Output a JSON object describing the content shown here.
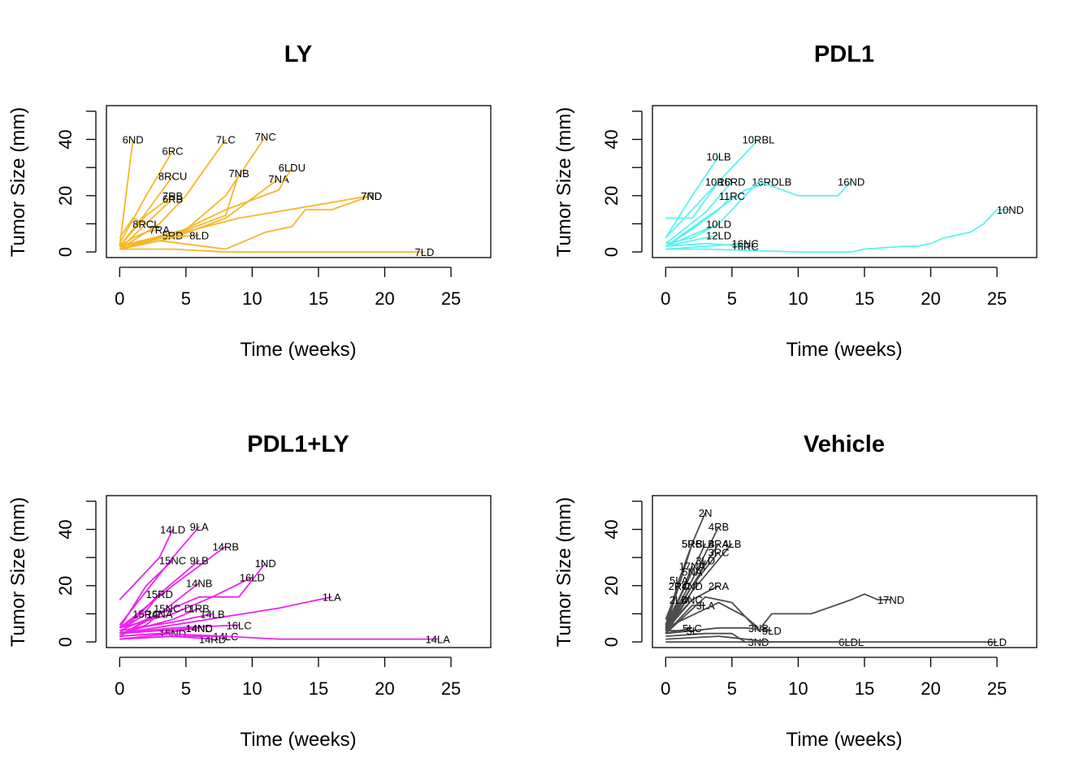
{
  "chart_data": [
    {
      "type": "line",
      "title": "LY",
      "xlabel": "Time (weeks)",
      "ylabel": "Tumor Size (mm)",
      "xlim": [
        0,
        27
      ],
      "ylim": [
        0,
        52
      ],
      "xticks": [
        "0",
        "5",
        "10",
        "15",
        "20",
        "25"
      ],
      "yticks": [
        "0",
        "20",
        "40"
      ],
      "color": "#F5B727",
      "series": [
        {
          "name": "6ND",
          "x": [
            0,
            1
          ],
          "y": [
            2,
            40
          ]
        },
        {
          "name": "6RC",
          "x": [
            0,
            2,
            4
          ],
          "y": [
            3,
            20,
            36
          ]
        },
        {
          "name": "7LC",
          "x": [
            0,
            3,
            5,
            8
          ],
          "y": [
            1,
            10,
            20,
            40
          ]
        },
        {
          "name": "7NC",
          "x": [
            0,
            5,
            8,
            11
          ],
          "y": [
            2,
            8,
            20,
            41
          ]
        },
        {
          "name": "8RCU",
          "x": [
            0,
            2,
            4
          ],
          "y": [
            2,
            14,
            27
          ]
        },
        {
          "name": "7NB",
          "x": [
            0,
            4,
            8,
            9
          ],
          "y": [
            2,
            6,
            13,
            28
          ]
        },
        {
          "name": "7NA",
          "x": [
            0,
            4,
            8,
            12
          ],
          "y": [
            1,
            5,
            12,
            26
          ]
        },
        {
          "name": "6LDU",
          "x": [
            0,
            4,
            8,
            12,
            13
          ],
          "y": [
            1,
            6,
            15,
            22,
            30
          ]
        },
        {
          "name": "7RB",
          "x": [
            0,
            2,
            4
          ],
          "y": [
            2,
            13,
            20
          ]
        },
        {
          "name": "6RB",
          "x": [
            0,
            2,
            4
          ],
          "y": [
            1,
            10,
            19
          ]
        },
        {
          "name": "7RD",
          "x": [
            0,
            4,
            9,
            14,
            19
          ],
          "y": [
            2,
            6,
            12,
            16,
            20
          ]
        },
        {
          "name": "8RCL",
          "x": [
            0,
            1,
            2
          ],
          "y": [
            5,
            12,
            10
          ]
        },
        {
          "name": "7RA",
          "x": [
            0,
            1,
            2,
            3
          ],
          "y": [
            2,
            5,
            7,
            8
          ]
        },
        {
          "name": "5RD",
          "x": [
            0,
            2,
            4
          ],
          "y": [
            1,
            4,
            6
          ]
        },
        {
          "name": "8LD",
          "x": [
            0,
            3,
            6
          ],
          "y": [
            2,
            5,
            6
          ]
        },
        {
          "name": "7ND",
          "x": [
            0,
            3,
            8,
            10,
            11,
            12,
            13,
            14,
            16,
            19
          ],
          "y": [
            1,
            4,
            1,
            5,
            7,
            8,
            9,
            15,
            15,
            20
          ]
        },
        {
          "name": "7LD",
          "x": [
            0,
            4,
            8,
            12,
            16,
            20,
            23
          ],
          "y": [
            1,
            1,
            0,
            0,
            0,
            0,
            0
          ]
        }
      ]
    },
    {
      "type": "line",
      "title": "PDL1",
      "xlabel": "Time (weeks)",
      "ylabel": "Tumor Size (mm)",
      "xlim": [
        0,
        27
      ],
      "ylim": [
        0,
        52
      ],
      "xticks": [
        "0",
        "5",
        "10",
        "15",
        "20",
        "25"
      ],
      "yticks": [
        "0",
        "20",
        "40"
      ],
      "color": "#5CF2F2",
      "series": [
        {
          "name": "10RBL",
          "x": [
            0,
            3,
            5,
            7
          ],
          "y": [
            5,
            20,
            30,
            40
          ]
        },
        {
          "name": "10LB",
          "x": [
            0,
            2,
            4
          ],
          "y": [
            5,
            20,
            34
          ]
        },
        {
          "name": "10RD",
          "x": [
            0,
            2,
            4
          ],
          "y": [
            12,
            12,
            25
          ]
        },
        {
          "name": "16RD",
          "x": [
            0,
            3,
            5
          ],
          "y": [
            3,
            14,
            25
          ]
        },
        {
          "name": "16RDLB",
          "x": [
            0,
            3,
            6,
            8
          ],
          "y": [
            2,
            12,
            22,
            25
          ]
        },
        {
          "name": "16ND",
          "x": [
            0,
            4,
            7,
            10,
            13,
            14
          ],
          "y": [
            2,
            10,
            25,
            20,
            20,
            25
          ]
        },
        {
          "name": "11RC",
          "x": [
            0,
            2,
            4,
            5
          ],
          "y": [
            2,
            8,
            15,
            20
          ]
        },
        {
          "name": "10LD",
          "x": [
            0,
            2,
            4
          ],
          "y": [
            3,
            5,
            10
          ]
        },
        {
          "name": "12LD",
          "x": [
            0,
            2,
            4
          ],
          "y": [
            2,
            4,
            6
          ]
        },
        {
          "name": "16NC",
          "x": [
            0,
            3,
            6
          ],
          "y": [
            1,
            2,
            3
          ]
        },
        {
          "name": "16RC",
          "x": [
            0,
            3,
            6
          ],
          "y": [
            2,
            3,
            2
          ]
        },
        {
          "name": "10ND",
          "x": [
            0,
            3,
            10,
            14,
            15,
            18,
            19,
            20,
            21,
            23,
            24,
            25,
            26
          ],
          "y": [
            1,
            1,
            0,
            0,
            1,
            2,
            2,
            3,
            5,
            7,
            10,
            15,
            15
          ]
        }
      ]
    },
    {
      "type": "line",
      "title": "PDL1+LY",
      "xlabel": "Time (weeks)",
      "ylabel": "Tumor Size (mm)",
      "xlim": [
        0,
        27
      ],
      "ylim": [
        0,
        52
      ],
      "xticks": [
        "0",
        "5",
        "10",
        "15",
        "20",
        "25"
      ],
      "yticks": [
        "0",
        "20",
        "40"
      ],
      "color": "#EE22EE",
      "series": [
        {
          "name": "14LD",
          "x": [
            0,
            3,
            4
          ],
          "y": [
            15,
            30,
            40
          ]
        },
        {
          "name": "9LA",
          "x": [
            0,
            4,
            6
          ],
          "y": [
            6,
            30,
            41
          ]
        },
        {
          "name": "14RB",
          "x": [
            0,
            4,
            8
          ],
          "y": [
            5,
            20,
            34
          ]
        },
        {
          "name": "15NC",
          "x": [
            0,
            2,
            4
          ],
          "y": [
            5,
            20,
            29
          ]
        },
        {
          "name": "9LB",
          "x": [
            0,
            3,
            6
          ],
          "y": [
            3,
            17,
            29
          ]
        },
        {
          "name": "1ND",
          "x": [
            0,
            3,
            6,
            9,
            11
          ],
          "y": [
            4,
            10,
            16,
            16,
            28
          ]
        },
        {
          "name": "16LD",
          "x": [
            0,
            4,
            7,
            10
          ],
          "y": [
            5,
            10,
            16,
            23
          ]
        },
        {
          "name": "14NB",
          "x": [
            0,
            3,
            6
          ],
          "y": [
            2,
            10,
            21
          ]
        },
        {
          "name": "15RD",
          "x": [
            0,
            2,
            3
          ],
          "y": [
            5,
            11,
            17
          ]
        },
        {
          "name": "1LA",
          "x": [
            0,
            4,
            8,
            12,
            16
          ],
          "y": [
            3,
            6,
            9,
            12,
            16
          ]
        },
        {
          "name": "15NC-D",
          "x": [
            0,
            2,
            4
          ],
          "y": [
            2,
            8,
            12
          ]
        },
        {
          "name": "1RB",
          "x": [
            0,
            4,
            6
          ],
          "y": [
            3,
            8,
            12
          ]
        },
        {
          "name": "15RC",
          "x": [
            0,
            1,
            2
          ],
          "y": [
            5,
            7,
            10
          ]
        },
        {
          "name": "14NA",
          "x": [
            0,
            2,
            3
          ],
          "y": [
            3,
            6,
            10
          ]
        },
        {
          "name": "14LB",
          "x": [
            0,
            4,
            7
          ],
          "y": [
            4,
            7,
            10
          ]
        },
        {
          "name": "16LC",
          "x": [
            0,
            4,
            9
          ],
          "y": [
            3,
            5,
            6
          ]
        },
        {
          "name": "14NC",
          "x": [
            0,
            3,
            6
          ],
          "y": [
            2,
            3,
            5
          ]
        },
        {
          "name": "14ND",
          "x": [
            0,
            3,
            6
          ],
          "y": [
            3,
            4,
            5
          ]
        },
        {
          "name": "15ND",
          "x": [
            0,
            2,
            4
          ],
          "y": [
            1,
            2,
            3
          ]
        },
        {
          "name": "14RD",
          "x": [
            0,
            4,
            7
          ],
          "y": [
            1,
            2,
            1
          ]
        },
        {
          "name": "14LC",
          "x": [
            0,
            4,
            8
          ],
          "y": [
            1,
            2,
            2
          ]
        },
        {
          "name": "14LA",
          "x": [
            0,
            3,
            8,
            12,
            16,
            20,
            24
          ],
          "y": [
            2,
            3,
            2,
            1,
            1,
            1,
            1
          ]
        }
      ]
    },
    {
      "type": "line",
      "title": "Vehicle",
      "xlabel": "Time (weeks)",
      "ylabel": "Tumor Size (mm)",
      "xlim": [
        0,
        27
      ],
      "ylim": [
        0,
        52
      ],
      "xticks": [
        "0",
        "5",
        "10",
        "15",
        "20",
        "25"
      ],
      "yticks": [
        "0",
        "20",
        "40"
      ],
      "color": "#4D4D4D",
      "series": [
        {
          "name": "2N",
          "x": [
            0,
            1,
            2,
            3
          ],
          "y": [
            5,
            20,
            35,
            46
          ]
        },
        {
          "name": "4RB",
          "x": [
            0,
            2,
            4
          ],
          "y": [
            5,
            22,
            41
          ]
        },
        {
          "name": "5RB",
          "x": [
            0,
            1,
            2
          ],
          "y": [
            8,
            20,
            35
          ]
        },
        {
          "name": "5RC",
          "x": [
            0,
            1,
            2
          ],
          "y": [
            6,
            22,
            35
          ]
        },
        {
          "name": "5LB",
          "x": [
            0,
            2,
            3
          ],
          "y": [
            6,
            25,
            35
          ]
        },
        {
          "name": "4RA",
          "x": [
            0,
            2,
            4
          ],
          "y": [
            5,
            20,
            35
          ]
        },
        {
          "name": "4LB",
          "x": [
            0,
            2,
            5
          ],
          "y": [
            4,
            18,
            35
          ]
        },
        {
          "name": "3RC",
          "x": [
            0,
            2,
            4
          ],
          "y": [
            4,
            20,
            32
          ]
        },
        {
          "name": "3LD",
          "x": [
            0,
            2,
            3
          ],
          "y": [
            3,
            18,
            29
          ]
        },
        {
          "name": "17NA",
          "x": [
            0,
            1,
            2
          ],
          "y": [
            5,
            15,
            27
          ]
        },
        {
          "name": "5NA",
          "x": [
            0,
            1,
            2
          ],
          "y": [
            4,
            15,
            25
          ]
        },
        {
          "name": "5LA",
          "x": [
            0,
            1
          ],
          "y": [
            4,
            22
          ]
        },
        {
          "name": "2RC",
          "x": [
            0,
            1
          ],
          "y": [
            5,
            20
          ]
        },
        {
          "name": "4ND",
          "x": [
            0,
            1,
            2
          ],
          "y": [
            3,
            12,
            20
          ]
        },
        {
          "name": "2RA",
          "x": [
            0,
            2,
            4
          ],
          "y": [
            4,
            15,
            20
          ]
        },
        {
          "name": "2LD",
          "x": [
            0,
            1
          ],
          "y": [
            6,
            15
          ]
        },
        {
          "name": "4NC",
          "x": [
            0,
            1,
            2
          ],
          "y": [
            3,
            10,
            15
          ]
        },
        {
          "name": "3LA",
          "x": [
            0,
            2,
            3
          ],
          "y": [
            3,
            13,
            13
          ]
        },
        {
          "name": "3NB",
          "x": [
            0,
            4,
            6,
            7
          ],
          "y": [
            5,
            14,
            9,
            5
          ]
        },
        {
          "name": "17ND",
          "x": [
            0,
            3,
            5,
            7,
            8,
            11,
            14,
            15,
            16,
            17
          ],
          "y": [
            3,
            16,
            14,
            4,
            10,
            10,
            15,
            17,
            15,
            15
          ]
        },
        {
          "name": "5LD",
          "x": [
            0,
            4,
            6,
            8
          ],
          "y": [
            3,
            5,
            5,
            4
          ]
        },
        {
          "name": "3ND",
          "x": [
            0,
            3,
            5,
            6,
            7
          ],
          "y": [
            2,
            3,
            3,
            0,
            0
          ]
        },
        {
          "name": "6LDL",
          "x": [
            0,
            4,
            8,
            12,
            14
          ],
          "y": [
            1,
            2,
            0,
            0,
            0
          ]
        },
        {
          "name": "5LC",
          "x": [
            0,
            1,
            2
          ],
          "y": [
            4,
            4,
            5
          ]
        },
        {
          "name": "5L",
          "x": [
            0,
            1,
            2
          ],
          "y": [
            3,
            4,
            4
          ]
        },
        {
          "name": "6LD",
          "x": [
            0,
            10,
            15,
            20,
            25
          ],
          "y": [
            0,
            0,
            0,
            0,
            0
          ]
        }
      ]
    }
  ]
}
